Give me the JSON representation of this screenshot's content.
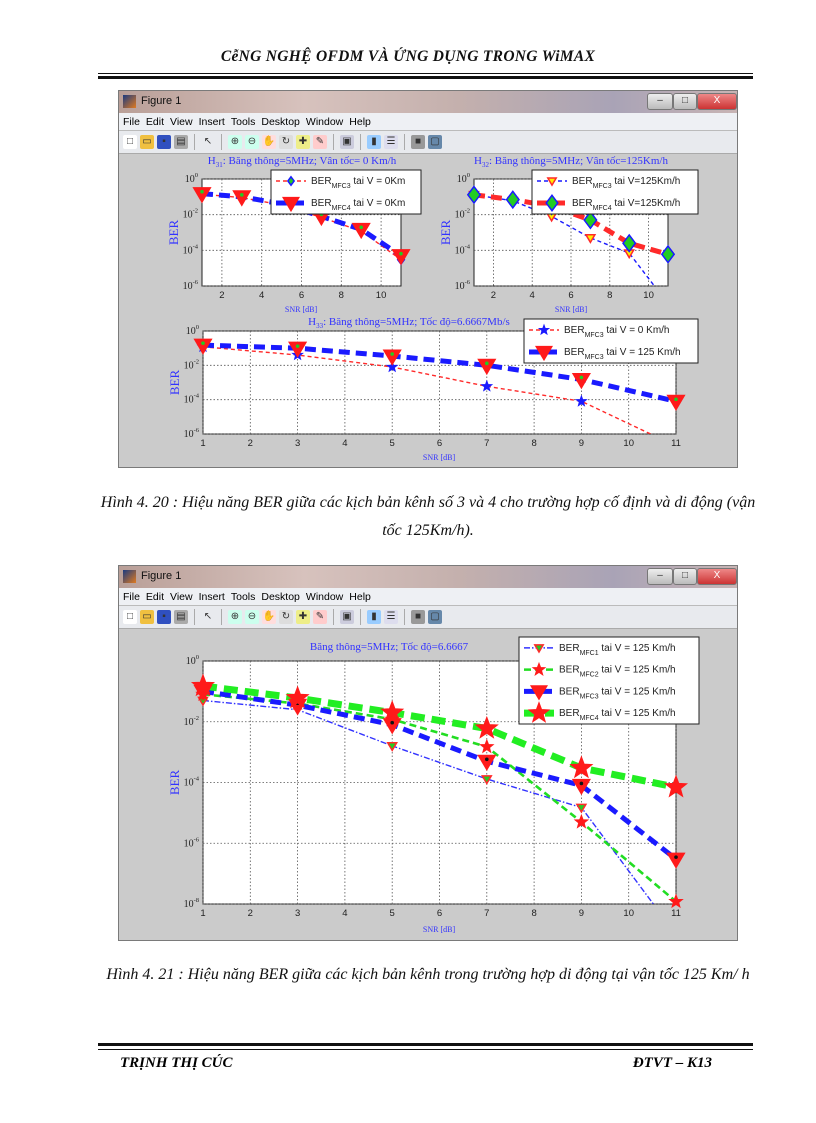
{
  "header": {
    "title": "CễNG NGHỆ OFDM VÀ ỨNG DỤNG TRONG WiMAX"
  },
  "footer": {
    "author": "TRỊNH THỊ CÚC",
    "class": "ĐTVT – K13"
  },
  "window": {
    "title": "Figure 1",
    "menu": [
      "File",
      "Edit",
      "View",
      "Insert",
      "Tools",
      "Desktop",
      "Window",
      "Help"
    ],
    "toolbar_icons": [
      "new-file-icon",
      "open-file-icon",
      "save-icon",
      "print-icon",
      "|",
      "pointer-icon",
      "|",
      "zoom-in-icon",
      "zoom-out-icon",
      "pan-icon",
      "rotate-icon",
      "data-cursor-icon",
      "brush-icon",
      "|",
      "link-plot-icon",
      "|",
      "colorbar-icon",
      "legend-icon",
      "|",
      "hide-plot-tools-icon",
      "show-plot-tools-icon"
    ],
    "controls": {
      "minimize": "–",
      "maximize": "□",
      "close": "X"
    }
  },
  "figures": [
    {
      "caption": "Hình 4. 20 : Hiệu năng BER giữa các kịch bản kênh số 3 và 4 cho trường hợp cố định và di động (vận tốc 125Km/h)."
    },
    {
      "caption": "Hình 4. 21 : Hiệu năng BER giữa các kịch bản kênh trong trường hợp di động tại vận tốc 125 Km/ h"
    }
  ],
  "chart_data": [
    {
      "type": "line",
      "figure": 1,
      "title_main": "H",
      "title_sub": "31",
      "title_rest": ": Băng thông=5MHz; Vân tốc= 0 Km/h",
      "xlabel": "SNR [dB]",
      "ylabel": "BER",
      "yscale": "log",
      "xlim": [
        1,
        11
      ],
      "ylim": [
        1e-06,
        1
      ],
      "xticks": [
        2,
        4,
        6,
        8,
        10
      ],
      "yticks": [
        1,
        0.01,
        0.0001,
        1e-06
      ],
      "grid": true,
      "legend": "top-right",
      "x": [
        1,
        3,
        5,
        7,
        9,
        11
      ],
      "series": [
        {
          "name_main": "BER",
          "name_sub": "MFC3",
          "name_rest": " tai V = 0Km",
          "values": [
            0.14,
            0.09,
            0.035,
            0.007,
            0.0012,
            3e-05
          ],
          "line_color": "#ff2a2a",
          "line_style": "--",
          "weight": "thin",
          "marker": "diamond",
          "marker_face": "#22cc22",
          "marker_edge": "#1a1aff"
        },
        {
          "name_main": "BER",
          "name_sub": "MFC4",
          "name_rest": " tai V = 0Km",
          "values": [
            0.15,
            0.1,
            0.04,
            0.008,
            0.0015,
            5e-05
          ],
          "line_color": "#1a1aff",
          "line_style": "--",
          "weight": "thick",
          "marker": "triangle-down",
          "marker_face": "#ff1a1a",
          "marker_edge": "#ff1a1a"
        }
      ]
    },
    {
      "type": "line",
      "figure": 1,
      "title_main": "H",
      "title_sub": "32",
      "title_rest": ": Băng thông=5MHz; Vân tốc=125Km/h",
      "xlabel": "SNR [dB]",
      "ylabel": "BER",
      "yscale": "log",
      "xlim": [
        1,
        11
      ],
      "ylim": [
        1e-06,
        1
      ],
      "xticks": [
        2,
        4,
        6,
        8,
        10
      ],
      "yticks": [
        1,
        0.01,
        0.0001,
        1e-06
      ],
      "grid": true,
      "legend": "top-right",
      "x": [
        1,
        3,
        5,
        7,
        9,
        11
      ],
      "series": [
        {
          "name_main": "BER",
          "name_sub": "MFC3",
          "name_rest": " tai V=125Km/h",
          "values": [
            0.13,
            0.06,
            0.008,
            0.0005,
            7e-05,
            1e-07
          ],
          "line_color": "#1a1aff",
          "line_style": "--",
          "weight": "thin",
          "marker": "triangle-down",
          "marker_face": "#ffee00",
          "marker_edge": "#ff2a2a"
        },
        {
          "name_main": "BER",
          "name_sub": "MFC4",
          "name_rest": " tai V=125Km/h",
          "values": [
            0.13,
            0.07,
            0.03,
            0.005,
            0.00025,
            6e-05
          ],
          "line_color": "#ff2a2a",
          "line_style": "--",
          "weight": "thick",
          "marker": "diamond",
          "marker_face": "#22cc22",
          "marker_edge": "#1a1aff"
        }
      ]
    },
    {
      "type": "line",
      "figure": 1,
      "title_main": "H",
      "title_sub": "33",
      "title_rest": ": Băng thông=5MHz; Tốc độ=6.6667Mb/s",
      "xlabel": "SNR [dB]",
      "ylabel": "BER",
      "yscale": "log",
      "xlim": [
        1,
        11
      ],
      "ylim": [
        1e-06,
        1
      ],
      "xticks": [
        1,
        2,
        3,
        4,
        5,
        6,
        7,
        8,
        9,
        10,
        11
      ],
      "yticks": [
        1,
        0.01,
        0.0001,
        1e-06
      ],
      "grid": true,
      "legend": "top-right",
      "x": [
        1,
        3,
        5,
        7,
        9,
        11
      ],
      "series": [
        {
          "name_main": "BER",
          "name_sub": "MFC3",
          "name_rest": " tai V = 0 Km/h",
          "values": [
            0.12,
            0.04,
            0.008,
            0.0006,
            8e-05,
            2e-07
          ],
          "line_color": "#ff2a2a",
          "line_style": "--",
          "weight": "thin",
          "marker": "star",
          "marker_face": "#1a1aff",
          "marker_edge": "#1a1aff"
        },
        {
          "name_main": "BER",
          "name_sub": "MFC3",
          "name_rest": " tai V = 125 Km/h",
          "values": [
            0.15,
            0.1,
            0.035,
            0.01,
            0.0015,
            8e-05
          ],
          "line_color": "#1a1aff",
          "line_style": "--",
          "weight": "thick",
          "marker": "triangle-down",
          "marker_face": "#ff1a1a",
          "marker_edge": "#ff1a1a"
        }
      ]
    },
    {
      "type": "line",
      "figure": 2,
      "title_main": "",
      "title_sub": "",
      "title_rest": "Băng thông=5MHz; Tốc độ=6.6667",
      "xlabel": "SNR [dB]",
      "ylabel": "BER",
      "yscale": "log",
      "xlim": [
        1,
        11
      ],
      "ylim": [
        1e-08,
        1
      ],
      "xticks": [
        1,
        2,
        3,
        4,
        5,
        6,
        7,
        8,
        9,
        10,
        11
      ],
      "yticks": [
        1,
        0.01,
        0.0001,
        1e-06,
        1e-08
      ],
      "grid": true,
      "legend": "top-right",
      "x": [
        1,
        3,
        5,
        7,
        9,
        11
      ],
      "series": [
        {
          "name_main": "BER",
          "name_sub": "MFC1",
          "name_rest": " tai V = 125 Km/h",
          "values": [
            0.05,
            0.025,
            0.0016,
            0.00013,
            1.5e-05,
            1e-09
          ],
          "line_color": "#3333ff",
          "line_style": "-.",
          "weight": "thin",
          "marker": "triangle-down",
          "marker_face": "#22cc22",
          "marker_edge": "#ff2a2a"
        },
        {
          "name_main": "BER",
          "name_sub": "MFC2",
          "name_rest": " tai V = 125 Km/h",
          "values": [
            0.08,
            0.04,
            0.012,
            0.0015,
            5e-06,
            1.2e-08
          ],
          "line_color": "#22dd22",
          "line_style": "--",
          "weight": "medium",
          "marker": "star",
          "marker_face": "#ff1a1a",
          "marker_edge": "#ff1a1a"
        },
        {
          "name_main": "BER",
          "name_sub": "MFC3",
          "name_rest": " tai V = 125 Km/h",
          "values": [
            0.1,
            0.035,
            0.008,
            0.0005,
            8e-05,
            3e-07
          ],
          "line_color": "#1a1aff",
          "line_style": "--",
          "weight": "thick",
          "marker": "triangle-down",
          "marker_face": "#ff1a1a",
          "marker_edge": "#ff1a1a"
        },
        {
          "name_main": "BER",
          "name_sub": "MFC4",
          "name_rest": " tai V = 125 Km/h",
          "values": [
            0.15,
            0.06,
            0.02,
            0.006,
            0.0003,
            7e-05
          ],
          "line_color": "#22ee22",
          "line_style": "--",
          "weight": "extra-thick",
          "marker": "star",
          "marker_face": "#ff1a1a",
          "marker_edge": "#ff1a1a"
        }
      ]
    }
  ],
  "colors": {
    "label_blue": "#3333ff",
    "figure_bg": "#cbcbcb"
  }
}
